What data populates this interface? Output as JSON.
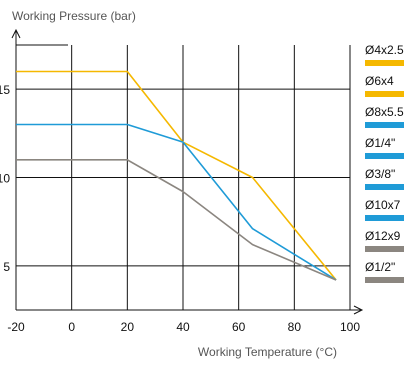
{
  "chart_data": {
    "type": "line",
    "ylabel": "Working Pressure (bar)",
    "xlabel": "Working Temperature (°C)",
    "xlim": [
      -20,
      100
    ],
    "ylim": [
      2.5,
      17.5
    ],
    "x_ticks": [
      -20,
      0,
      20,
      40,
      60,
      80,
      100
    ],
    "x_tick_labels": [
      "-20",
      "0",
      "20",
      "40",
      "60",
      "80",
      "100"
    ],
    "y_ticks": [
      5,
      10,
      15
    ],
    "y_tick_labels": [
      "5",
      "10",
      "15"
    ],
    "grid": true,
    "legend_position": "right",
    "series": [
      {
        "color": "#f5b800",
        "x": [
          -20,
          20,
          40,
          65,
          95
        ],
        "y": [
          16,
          16,
          12,
          10,
          4.2
        ]
      },
      {
        "color": "#1f9bd7",
        "x": [
          -20,
          20,
          40,
          65,
          95
        ],
        "y": [
          13,
          13,
          12,
          7.1,
          4.2
        ]
      },
      {
        "color": "#8b8680",
        "x": [
          -20,
          20,
          40,
          65,
          95
        ],
        "y": [
          11,
          11,
          9.2,
          6.2,
          4.2
        ]
      }
    ],
    "legend": [
      {
        "label": "Ø4x2.5",
        "color": "#f5b800"
      },
      {
        "label": "Ø6x4",
        "color": "#f5b800"
      },
      {
        "label": "Ø8x5.5",
        "color": "#1f9bd7"
      },
      {
        "label": "Ø1/4\"",
        "color": "#1f9bd7"
      },
      {
        "label": "Ø3/8\"",
        "color": "#1f9bd7"
      },
      {
        "label": "Ø10x7",
        "color": "#1f9bd7"
      },
      {
        "label": "Ø12x9",
        "color": "#8b8680"
      },
      {
        "label": "Ø1/2\"",
        "color": "#8b8680"
      }
    ]
  }
}
